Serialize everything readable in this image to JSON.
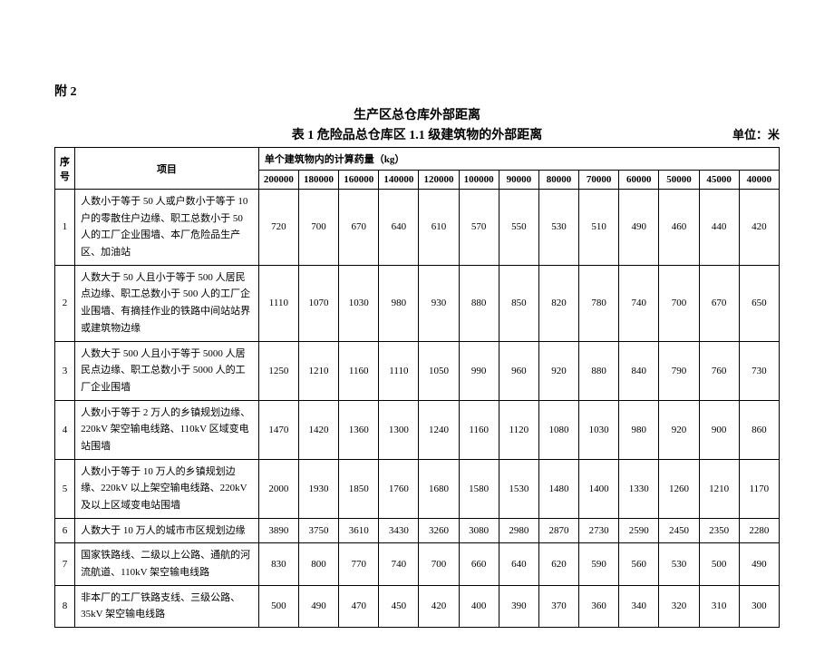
{
  "appendix": "附 2",
  "title_main": "生产区总仓库外部距离",
  "title_sub": "表 1   危险品总仓库区 1.1 级建筑物的外部距离",
  "unit": "单位：米",
  "header": {
    "seq": "序号",
    "item": "项目",
    "quantity_label": "单个建筑物内的计算药量（kg）",
    "columns": [
      "200000",
      "180000",
      "160000",
      "140000",
      "120000",
      "100000",
      "90000",
      "80000",
      "70000",
      "60000",
      "50000",
      "45000",
      "40000"
    ]
  },
  "rows": [
    {
      "num": "1",
      "item": "人数小于等于 50 人或户数小于等于 10 户的零散住户边缘、职工总数小于 50 人的工厂企业围墙、本厂危险品生产区、加油站",
      "values": [
        "720",
        "700",
        "670",
        "640",
        "610",
        "570",
        "550",
        "530",
        "510",
        "490",
        "460",
        "440",
        "420"
      ]
    },
    {
      "num": "2",
      "item": "人数大于 50 人且小于等于 500 人居民点边缘、职工总数小于 500 人的工厂企业围墙、有摘挂作业的铁路中间站站界或建筑物边缘",
      "values": [
        "1110",
        "1070",
        "1030",
        "980",
        "930",
        "880",
        "850",
        "820",
        "780",
        "740",
        "700",
        "670",
        "650"
      ]
    },
    {
      "num": "3",
      "item": "人数大于 500 人且小于等于 5000 人居民点边缘、职工总数小于 5000 人的工厂企业围墙",
      "values": [
        "1250",
        "1210",
        "1160",
        "1110",
        "1050",
        "990",
        "960",
        "920",
        "880",
        "840",
        "790",
        "760",
        "730"
      ]
    },
    {
      "num": "4",
      "item": "人数小于等于 2 万人的乡镇规划边缘、220kV 架空输电线路、110kV 区域变电站围墙",
      "values": [
        "1470",
        "1420",
        "1360",
        "1300",
        "1240",
        "1160",
        "1120",
        "1080",
        "1030",
        "980",
        "920",
        "900",
        "860"
      ]
    },
    {
      "num": "5",
      "item": "人数小于等于 10 万人的乡镇规划边缘、220kV 以上架空输电线路、220kV 及以上区域变电站围墙",
      "values": [
        "2000",
        "1930",
        "1850",
        "1760",
        "1680",
        "1580",
        "1530",
        "1480",
        "1400",
        "1330",
        "1260",
        "1210",
        "1170"
      ]
    },
    {
      "num": "6",
      "item": "人数大于 10 万人的城市市区规划边缘",
      "values": [
        "3890",
        "3750",
        "3610",
        "3430",
        "3260",
        "3080",
        "2980",
        "2870",
        "2730",
        "2590",
        "2450",
        "2350",
        "2280"
      ]
    },
    {
      "num": "7",
      "item": "国家铁路线、二级以上公路、通航的河流航道、110kV 架空输电线路",
      "values": [
        "830",
        "800",
        "770",
        "740",
        "700",
        "660",
        "640",
        "620",
        "590",
        "560",
        "530",
        "500",
        "490"
      ]
    },
    {
      "num": "8",
      "item": "非本厂的工厂铁路支线、三级公路、35kV 架空输电线路",
      "values": [
        "500",
        "490",
        "470",
        "450",
        "420",
        "400",
        "390",
        "370",
        "360",
        "340",
        "320",
        "310",
        "300"
      ]
    }
  ]
}
